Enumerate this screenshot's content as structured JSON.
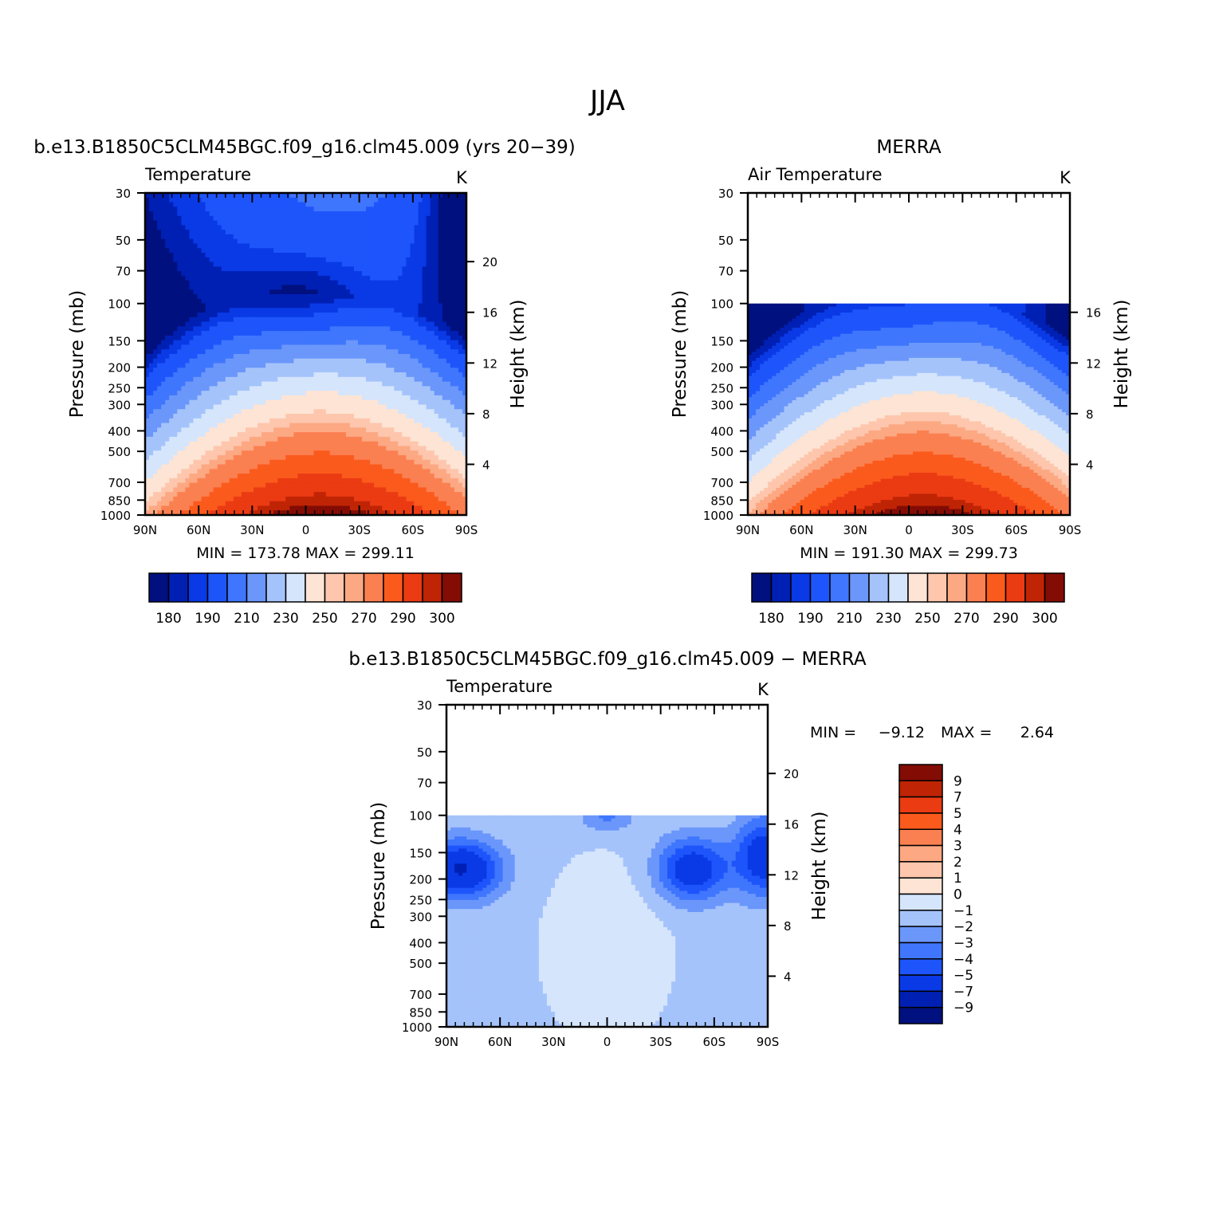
{
  "figure": {
    "title": "JJA",
    "colors": {
      "cold": [
        "#00107e",
        "#0020b4",
        "#0a3ae6",
        "#1e55fb",
        "#3f76fd",
        "#6b97fb",
        "#a5c3fb",
        "#d5e5fc"
      ],
      "warm": [
        "#fde4d4",
        "#fdc6ad",
        "#fca883",
        "#fb8051",
        "#fb5a1d",
        "#eb3b13",
        "#bf2405",
        "#830c05"
      ]
    }
  },
  "chart_data": [
    {
      "type": "heatmap",
      "title": "b.e13.B1850C5CLM45BGC.f09_g16.clm45.009 (yrs 20−39)",
      "variable": "Temperature",
      "units": "K",
      "ylabel": "Pressure (mb)",
      "ylabel_right": "Height (km)",
      "x_ticks": [
        "90N",
        "60N",
        "30N",
        "0",
        "30S",
        "60S",
        "90S"
      ],
      "y_ticks": [
        "30",
        "50",
        "70",
        "100",
        "150",
        "200",
        "250",
        "300",
        "400",
        "500",
        "700",
        "850",
        "1000"
      ],
      "y_right_ticks": [
        "20",
        "16",
        "12",
        "8",
        "4"
      ],
      "stats": "MIN =  173.78   MAX =  299.11",
      "min": 173.78,
      "max": 299.11,
      "colorbar_labels": [
        "180",
        "190",
        "210",
        "230",
        "250",
        "270",
        "290",
        "300"
      ],
      "data_top_pressure": 30
    },
    {
      "type": "heatmap",
      "title": "MERRA",
      "variable": "Air Temperature",
      "units": "K",
      "ylabel": "Pressure (mb)",
      "ylabel_right": "Height (km)",
      "x_ticks": [
        "90N",
        "60N",
        "30N",
        "0",
        "30S",
        "60S",
        "90S"
      ],
      "y_ticks": [
        "30",
        "50",
        "70",
        "100",
        "150",
        "200",
        "250",
        "300",
        "400",
        "500",
        "700",
        "850",
        "1000"
      ],
      "y_right_ticks": [
        "16",
        "12",
        "8",
        "4"
      ],
      "stats": "MIN =  191.30   MAX =  299.73",
      "min": 191.3,
      "max": 299.73,
      "colorbar_labels": [
        "180",
        "190",
        "210",
        "230",
        "250",
        "270",
        "290",
        "300"
      ],
      "data_top_pressure": 100
    },
    {
      "type": "heatmap",
      "title": "b.e13.B1850C5CLM45BGC.f09_g16.clm45.009 − MERRA",
      "variable": "Temperature",
      "units": "K",
      "ylabel": "Pressure (mb)",
      "ylabel_right": "Height (km)",
      "x_ticks": [
        "90N",
        "60N",
        "30N",
        "0",
        "30S",
        "60S",
        "90S"
      ],
      "y_ticks": [
        "30",
        "50",
        "70",
        "100",
        "150",
        "200",
        "250",
        "300",
        "400",
        "500",
        "700",
        "850",
        "1000"
      ],
      "y_right_ticks": [
        "20",
        "16",
        "12",
        "8",
        "4"
      ],
      "stats_min_label": "MIN =",
      "stats_min_value": "−9.12",
      "stats_max_label": "MAX =",
      "stats_max_value": "2.64",
      "min": -9.12,
      "max": 2.64,
      "colorbar_labels": [
        "9",
        "7",
        "5",
        "4",
        "3",
        "2",
        "1",
        "0",
        "−1",
        "−2",
        "−3",
        "−4",
        "−5",
        "−7",
        "−9"
      ],
      "data_top_pressure": 100
    }
  ]
}
